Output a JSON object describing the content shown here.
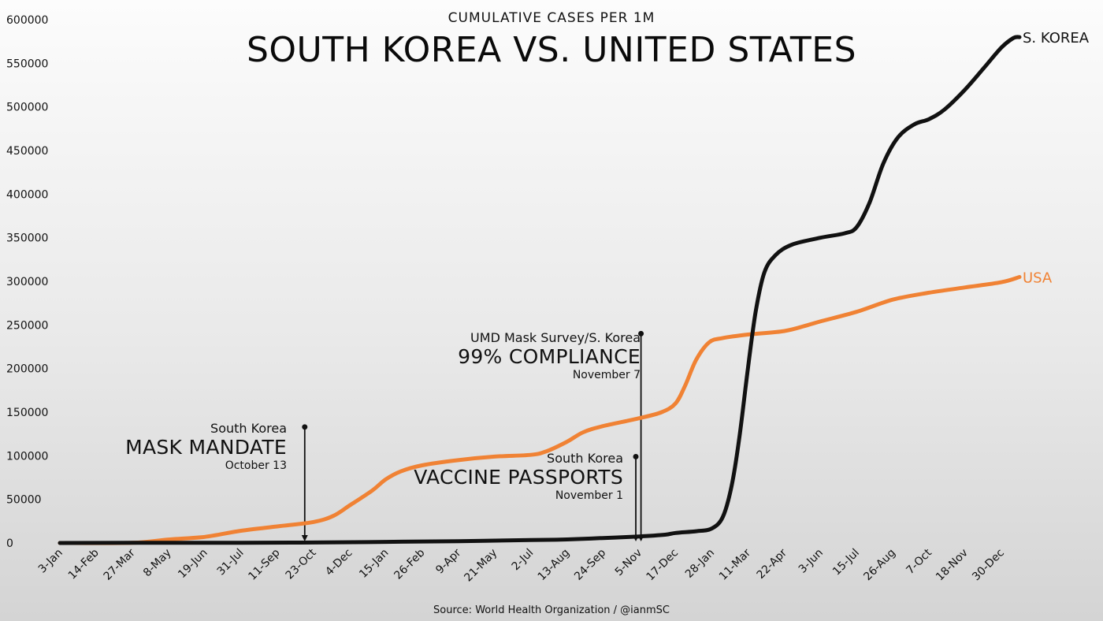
{
  "header": {
    "subtitle": "CUMULATIVE CASES PER 1M",
    "title": "SOUTH KOREA VS. UNITED STATES"
  },
  "footer": {
    "source": "Source: World Health Organization / @ianmSC"
  },
  "colors": {
    "korea": "#111111",
    "usa": "#f08234",
    "axis": "#111111"
  },
  "annotations": [
    {
      "id": "mask",
      "line1": "South Korea",
      "headline": "MASK MANDATE",
      "date": "October 13",
      "x_date": "2020-10-13",
      "y_top": 133000
    },
    {
      "id": "vaccine",
      "line1": "South Korea",
      "headline": "VACCINE PASSPORTS",
      "date": "November 1",
      "x_date": "2021-11-01",
      "y_top": 99000
    },
    {
      "id": "survey",
      "line1": "UMD Mask Survey/S. Korea",
      "headline": "99% COMPLIANCE",
      "date": "November 7",
      "x_date": "2021-11-07",
      "y_top": 240000
    }
  ],
  "chart_data": {
    "type": "line",
    "title": "SOUTH KOREA VS. UNITED STATES",
    "subtitle": "CUMULATIVE CASES PER 1M",
    "xlabel": "",
    "ylabel": "",
    "x_tick_labels": [
      "3-Jan",
      "14-Feb",
      "27-Mar",
      "8-May",
      "19-Jun",
      "31-Jul",
      "11-Sep",
      "23-Oct",
      "4-Dec",
      "15-Jan",
      "26-Feb",
      "9-Apr",
      "21-May",
      "2-Jul",
      "13-Aug",
      "24-Sep",
      "5-Nov",
      "17-Dec",
      "28-Jan",
      "11-Mar",
      "22-Apr",
      "3-Jun",
      "15-Jul",
      "26-Aug",
      "7-Oct",
      "18-Nov",
      "30-Dec"
    ],
    "y_ticks": [
      0,
      50000,
      100000,
      150000,
      200000,
      250000,
      300000,
      350000,
      400000,
      450000,
      500000,
      550000,
      600000
    ],
    "ylim": [
      0,
      600000
    ],
    "xlim": [
      "2020-01-03",
      "2023-01-20"
    ],
    "grid": false,
    "legend": "direct labels at line ends",
    "series": [
      {
        "name": "S. KOREA",
        "color": "#111111",
        "points": [
          [
            "2020-01-03",
            0
          ],
          [
            "2020-03-27",
            200
          ],
          [
            "2020-08-01",
            300
          ],
          [
            "2020-10-23",
            500
          ],
          [
            "2021-01-15",
            1300
          ],
          [
            "2021-04-09",
            2100
          ],
          [
            "2021-07-02",
            3300
          ],
          [
            "2021-08-13",
            4100
          ],
          [
            "2021-09-24",
            5700
          ],
          [
            "2021-11-05",
            7500
          ],
          [
            "2021-12-05",
            9500
          ],
          [
            "2021-12-17",
            11500
          ],
          [
            "2022-01-10",
            13500
          ],
          [
            "2022-01-28",
            16500
          ],
          [
            "2022-02-10",
            30000
          ],
          [
            "2022-02-20",
            65000
          ],
          [
            "2022-03-01",
            120000
          ],
          [
            "2022-03-11",
            200000
          ],
          [
            "2022-03-20",
            265000
          ],
          [
            "2022-03-30",
            310000
          ],
          [
            "2022-04-12",
            330000
          ],
          [
            "2022-05-01",
            342000
          ],
          [
            "2022-06-03",
            350000
          ],
          [
            "2022-07-01",
            355000
          ],
          [
            "2022-07-15",
            362000
          ],
          [
            "2022-07-30",
            390000
          ],
          [
            "2022-08-15",
            435000
          ],
          [
            "2022-09-01",
            465000
          ],
          [
            "2022-09-20",
            480000
          ],
          [
            "2022-10-07",
            486000
          ],
          [
            "2022-10-25",
            497000
          ],
          [
            "2022-11-18",
            520000
          ],
          [
            "2022-12-10",
            545000
          ],
          [
            "2022-12-30",
            568000
          ],
          [
            "2023-01-13",
            579000
          ],
          [
            "2023-01-20",
            580000
          ]
        ]
      },
      {
        "name": "USA",
        "color": "#f08234",
        "points": [
          [
            "2020-01-03",
            0
          ],
          [
            "2020-03-27",
            200
          ],
          [
            "2020-05-08",
            4000
          ],
          [
            "2020-06-19",
            7000
          ],
          [
            "2020-07-31",
            14000
          ],
          [
            "2020-09-11",
            19000
          ],
          [
            "2020-10-23",
            24000
          ],
          [
            "2020-11-15",
            31000
          ],
          [
            "2020-12-04",
            43000
          ],
          [
            "2020-12-30",
            60000
          ],
          [
            "2021-01-15",
            73000
          ],
          [
            "2021-02-01",
            82000
          ],
          [
            "2021-02-26",
            89000
          ],
          [
            "2021-04-09",
            95000
          ],
          [
            "2021-05-21",
            99000
          ],
          [
            "2021-07-02",
            101000
          ],
          [
            "2021-07-20",
            105000
          ],
          [
            "2021-08-13",
            116000
          ],
          [
            "2021-09-01",
            127000
          ],
          [
            "2021-09-24",
            134000
          ],
          [
            "2021-11-05",
            143000
          ],
          [
            "2021-12-01",
            150000
          ],
          [
            "2021-12-17",
            160000
          ],
          [
            "2021-12-28",
            180000
          ],
          [
            "2022-01-10",
            210000
          ],
          [
            "2022-01-25",
            230000
          ],
          [
            "2022-02-10",
            235000
          ],
          [
            "2022-03-11",
            239000
          ],
          [
            "2022-04-22",
            243000
          ],
          [
            "2022-05-20",
            250000
          ],
          [
            "2022-06-03",
            254000
          ],
          [
            "2022-07-15",
            265000
          ],
          [
            "2022-08-26",
            279000
          ],
          [
            "2022-10-07",
            287000
          ],
          [
            "2022-11-18",
            293000
          ],
          [
            "2022-12-30",
            299000
          ],
          [
            "2023-01-20",
            305000
          ]
        ]
      }
    ]
  }
}
